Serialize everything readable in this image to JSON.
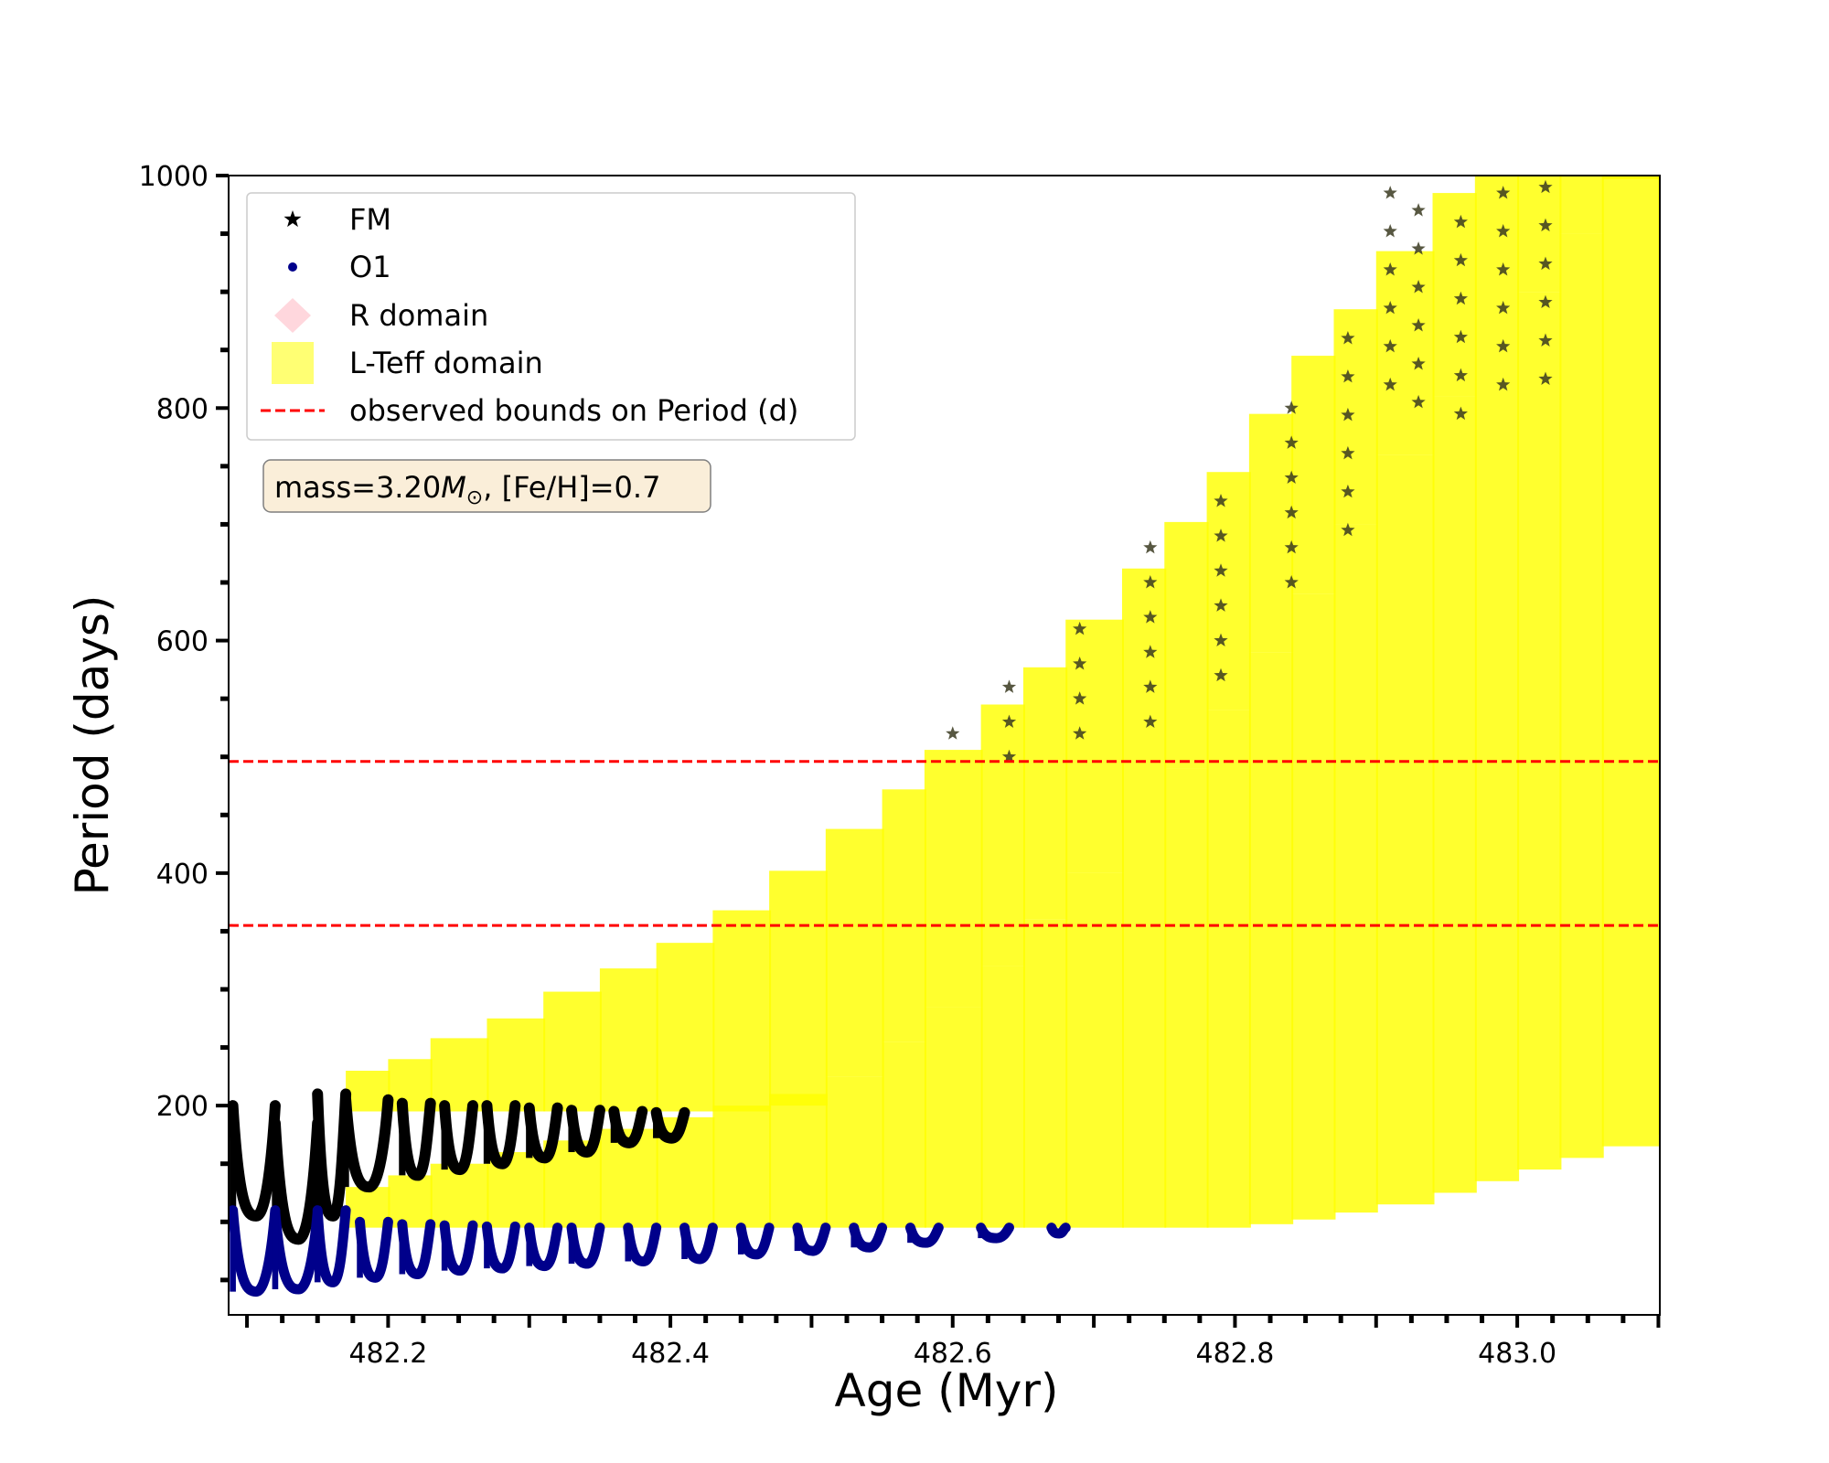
{
  "chart_data": {
    "type": "scatter",
    "xlabel": "Age (Myr)",
    "ylabel": "Period (days)",
    "xlim": [
      482.087,
      483.101
    ],
    "ylim": [
      20,
      1000
    ],
    "x_ticks": [
      482.2,
      482.4,
      482.6,
      482.8,
      483.0
    ],
    "x_tick_labels": [
      "482.2",
      "482.4",
      "482.6",
      "482.8",
      "483.0"
    ],
    "y_ticks": [
      200,
      400,
      600,
      800,
      1000
    ],
    "y_tick_labels": [
      "200",
      "400",
      "600",
      "800",
      "1000"
    ],
    "annotation": {
      "prefix": "mass=3.20",
      "symbol": "M",
      "sub": "⊙",
      "suffix": ", [Fe/H]=0.7"
    },
    "legend": {
      "position": "upper-left"
    },
    "observed_bounds": {
      "name": "observed bounds on Period (d)",
      "values": [
        355,
        496
      ],
      "color": "#ff0000"
    },
    "series": [
      {
        "name": "FM",
        "marker": "star",
        "color": "#000000",
        "pulse_cycles": [
          {
            "x_start": 482.09,
            "x_end": 482.12,
            "p_min": 105,
            "p_max": 200
          },
          {
            "x_start": 482.12,
            "x_end": 482.15,
            "p_min": 85,
            "p_max": 185
          },
          {
            "x_start": 482.15,
            "x_end": 482.17,
            "p_min": 105,
            "p_max": 210
          },
          {
            "x_start": 482.17,
            "x_end": 482.2,
            "p_min": 130,
            "p_max": 205
          },
          {
            "x_start": 482.21,
            "x_end": 482.23,
            "p_min": 140,
            "p_max": 202
          },
          {
            "x_start": 482.24,
            "x_end": 482.26,
            "p_min": 145,
            "p_max": 200
          },
          {
            "x_start": 482.27,
            "x_end": 482.29,
            "p_min": 150,
            "p_max": 200
          },
          {
            "x_start": 482.3,
            "x_end": 482.32,
            "p_min": 155,
            "p_max": 198
          },
          {
            "x_start": 482.33,
            "x_end": 482.35,
            "p_min": 160,
            "p_max": 196
          },
          {
            "x_start": 482.36,
            "x_end": 482.38,
            "p_min": 168,
            "p_max": 195
          },
          {
            "x_start": 482.39,
            "x_end": 482.41,
            "p_min": 172,
            "p_max": 194
          }
        ],
        "grid_points": {
          "x": [
            482.6,
            482.64,
            482.69,
            482.74,
            482.79,
            482.84,
            482.88,
            482.91,
            482.93,
            482.96,
            482.99,
            483.02
          ],
          "p_top": [
            520,
            560,
            610,
            680,
            720,
            800,
            860,
            985,
            970,
            960,
            985,
            990
          ],
          "p_step": [
            30,
            30,
            30,
            30,
            30,
            30,
            33,
            33,
            33,
            33,
            33,
            33
          ]
        }
      },
      {
        "name": "O1",
        "marker": "circle",
        "color": "#00008b",
        "pulse_cycles": [
          {
            "x_start": 482.09,
            "x_end": 482.12,
            "p_min": 40,
            "p_max": 110
          },
          {
            "x_start": 482.12,
            "x_end": 482.15,
            "p_min": 42,
            "p_max": 108
          },
          {
            "x_start": 482.15,
            "x_end": 482.17,
            "p_min": 48,
            "p_max": 110
          },
          {
            "x_start": 482.18,
            "x_end": 482.2,
            "p_min": 52,
            "p_max": 100
          },
          {
            "x_start": 482.21,
            "x_end": 482.23,
            "p_min": 55,
            "p_max": 98
          },
          {
            "x_start": 482.24,
            "x_end": 482.26,
            "p_min": 58,
            "p_max": 97
          },
          {
            "x_start": 482.27,
            "x_end": 482.29,
            "p_min": 60,
            "p_max": 96
          },
          {
            "x_start": 482.3,
            "x_end": 482.32,
            "p_min": 62,
            "p_max": 95
          },
          {
            "x_start": 482.33,
            "x_end": 482.35,
            "p_min": 64,
            "p_max": 95
          },
          {
            "x_start": 482.37,
            "x_end": 482.39,
            "p_min": 66,
            "p_max": 95
          },
          {
            "x_start": 482.41,
            "x_end": 482.43,
            "p_min": 68,
            "p_max": 95
          },
          {
            "x_start": 482.45,
            "x_end": 482.47,
            "p_min": 72,
            "p_max": 95
          },
          {
            "x_start": 482.49,
            "x_end": 482.51,
            "p_min": 75,
            "p_max": 95
          },
          {
            "x_start": 482.53,
            "x_end": 482.55,
            "p_min": 78,
            "p_max": 95
          },
          {
            "x_start": 482.57,
            "x_end": 482.59,
            "p_min": 82,
            "p_max": 95
          },
          {
            "x_start": 482.62,
            "x_end": 482.64,
            "p_min": 86,
            "p_max": 95
          },
          {
            "x_start": 482.67,
            "x_end": 482.68,
            "p_min": 90,
            "p_max": 95
          }
        ]
      },
      {
        "name": "R domain",
        "marker": "diamond",
        "color": "#ffb6c1"
      },
      {
        "name": "L-Teff domain",
        "marker": "square",
        "color": "#ffff00",
        "upper_band": {
          "x": [
            482.17,
            482.2,
            482.23,
            482.27,
            482.31,
            482.35,
            482.39,
            482.43,
            482.47,
            482.51,
            482.55,
            482.58,
            482.62,
            482.65,
            482.68,
            482.72,
            482.75,
            482.78,
            482.81,
            482.84,
            482.87,
            482.9,
            482.94,
            482.97,
            483.0,
            483.03,
            483.06,
            483.1
          ],
          "top": [
            230,
            240,
            258,
            275,
            298,
            318,
            340,
            368,
            402,
            438,
            472,
            506,
            545,
            577,
            618,
            662,
            702,
            745,
            795,
            845,
            885,
            935,
            985,
            1000,
            1000,
            1000,
            1000,
            1000
          ],
          "bottom": [
            195,
            195,
            195,
            195,
            195,
            195,
            195,
            195,
            200,
            225,
            255,
            285,
            320,
            360,
            400,
            440,
            490,
            540,
            590,
            640,
            700,
            760,
            810,
            860,
            900,
            950,
            1000,
            1000
          ]
        },
        "lower_band": {
          "x": [
            482.17,
            482.2,
            482.23,
            482.27,
            482.31,
            482.35,
            482.39,
            482.43,
            482.47,
            482.51,
            482.55,
            482.58,
            482.62,
            482.65,
            482.68,
            482.72,
            482.75,
            482.78,
            482.81,
            482.84,
            482.87,
            482.9,
            482.94,
            482.97,
            483.0,
            483.03,
            483.06,
            483.1
          ],
          "top": [
            130,
            140,
            150,
            160,
            170,
            180,
            190,
            200,
            210,
            225,
            255,
            285,
            320,
            360,
            400,
            440,
            490,
            540,
            590,
            640,
            700,
            760,
            810,
            860,
            900,
            950,
            1000,
            1000
          ],
          "bottom": [
            95,
            95,
            95,
            95,
            95,
            95,
            95,
            95,
            95,
            95,
            95,
            95,
            95,
            95,
            95,
            95,
            95,
            95,
            98,
            102,
            108,
            115,
            125,
            135,
            145,
            155,
            165,
            175
          ]
        }
      }
    ]
  }
}
